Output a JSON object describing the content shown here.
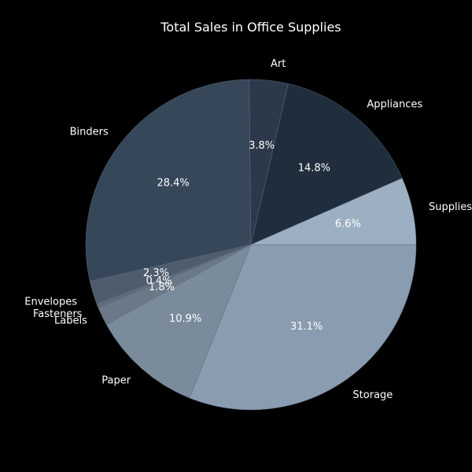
{
  "chart_data": {
    "type": "pie",
    "title": "Total Sales in Office Supplies",
    "slices": [
      {
        "label": "Storage",
        "value": 31.1,
        "pct_label": "31.1%",
        "color": "#8a9cb0"
      },
      {
        "label": "Paper",
        "value": 10.9,
        "pct_label": "10.9%",
        "color": "#7a8b9c"
      },
      {
        "label": "Labels",
        "value": 1.8,
        "pct_label": "1.8%",
        "color": "#6a7888"
      },
      {
        "label": "Fasteners",
        "value": 0.4,
        "pct_label": "0.4%",
        "color": "#5d6b7c"
      },
      {
        "label": "Envelopes",
        "value": 2.3,
        "pct_label": "2.3%",
        "color": "#4e5c6d"
      },
      {
        "label": "Binders",
        "value": 28.4,
        "pct_label": "28.4%",
        "color": "#37475a"
      },
      {
        "label": "Art",
        "value": 3.8,
        "pct_label": "3.8%",
        "color": "#2c394b"
      },
      {
        "label": "Appliances",
        "value": 14.8,
        "pct_label": "14.8%",
        "color": "#1f2d3d"
      },
      {
        "label": "Supplies",
        "value": 6.6,
        "pct_label": "6.6%",
        "color": "#9db0c3"
      }
    ],
    "start_angle_deg": 0,
    "direction": "clockwise",
    "background": "#000000",
    "text_color": "#ffffff"
  }
}
